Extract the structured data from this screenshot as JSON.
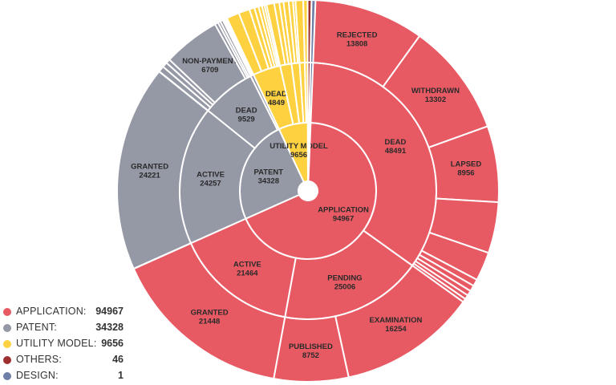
{
  "colors": {
    "application": "#e85a63",
    "patent": "#9598a5",
    "utility_model": "#fed141",
    "others": "#9e2f2f",
    "design": "#6f7fa8"
  },
  "legend": {
    "items": [
      {
        "label": "APPLICATION:",
        "value": "94967",
        "color_key": "application"
      },
      {
        "label": "PATENT:",
        "value": "34328",
        "color_key": "patent"
      },
      {
        "label": "UTILITY MODEL:",
        "value": "9656",
        "color_key": "utility_model"
      },
      {
        "label": "OTHERS:",
        "value": "46",
        "color_key": "others"
      },
      {
        "label": "DESIGN:",
        "value": "1",
        "color_key": "design"
      }
    ]
  },
  "chart_data": {
    "type": "sunburst",
    "title": "",
    "grid": false,
    "legend_position": "bottom-left",
    "children": [
      {
        "name": "APPLICATION",
        "value": 94967,
        "color_key": "application",
        "label": true,
        "children": [
          {
            "name": "DEAD",
            "value": 48491,
            "label": true,
            "children": [
              {
                "name": "REJECTED",
                "value": 13808,
                "label": true
              },
              {
                "name": "WITHDRAWN",
                "value": 13302,
                "label": true
              },
              {
                "name": "LAPSED",
                "value": 8956,
                "label": true
              },
              {
                "name": "",
                "value": 6000
              },
              {
                "name": "",
                "value": 3400
              },
              {
                "name": "",
                "value": 800
              },
              {
                "name": "",
                "value": 700
              },
              {
                "name": "",
                "value": 600
              },
              {
                "name": "",
                "value": 500
              },
              {
                "name": "",
                "value": 425
              }
            ]
          },
          {
            "name": "PENDING",
            "value": 25006,
            "label": true,
            "children": [
              {
                "name": "EXAMINATION",
                "value": 16254,
                "label": true
              },
              {
                "name": "PUBLISHED",
                "value": 8752,
                "label": true
              }
            ]
          },
          {
            "name": "ACTIVE",
            "value": 21464,
            "label": true,
            "children": [
              {
                "name": "GRANTED",
                "value": 21448,
                "label": true
              }
            ]
          }
        ]
      },
      {
        "name": "PATENT",
        "value": 34328,
        "color_key": "patent",
        "label": true,
        "children": [
          {
            "name": "ACTIVE",
            "value": 24257,
            "label": true,
            "children": [
              {
                "name": "GRANTED",
                "value": 24221,
                "label": true
              }
            ]
          },
          {
            "name": "DEAD",
            "value": 9529,
            "label": true,
            "children": [
              {
                "name": "",
                "value": 700
              },
              {
                "name": "",
                "value": 600
              },
              {
                "name": "",
                "value": 500
              },
              {
                "name": "NON-PAYMENT",
                "value": 6709,
                "label": true
              },
              {
                "name": "",
                "value": 400
              },
              {
                "name": "",
                "value": 300
              },
              {
                "name": "",
                "value": 320
              }
            ]
          },
          {
            "name": "",
            "value": 542
          }
        ]
      },
      {
        "name": "UTILITY MODEL",
        "value": 9656,
        "color_key": "utility_model",
        "label": true,
        "children": [
          {
            "name": "DEAD",
            "value": 4849,
            "label": true,
            "children": [
              {
                "name": "",
                "value": 1500
              },
              {
                "name": "",
                "value": 1300
              },
              {
                "name": "",
                "value": 600
              },
              {
                "name": "",
                "value": 500
              },
              {
                "name": "",
                "value": 400
              },
              {
                "name": "",
                "value": 300
              },
              {
                "name": "",
                "value": 249
              }
            ]
          },
          {
            "name": "",
            "value": 2000,
            "children": [
              {
                "name": "",
                "value": 900
              },
              {
                "name": "",
                "value": 600
              },
              {
                "name": "",
                "value": 500
              }
            ]
          },
          {
            "name": "",
            "value": 1400,
            "children": [
              {
                "name": "",
                "value": 600
              },
              {
                "name": "",
                "value": 500
              },
              {
                "name": "",
                "value": 300
              }
            ]
          },
          {
            "name": "",
            "value": 900,
            "children": [
              {
                "name": "",
                "value": 900
              }
            ]
          },
          {
            "name": "",
            "value": 507,
            "children": [
              {
                "name": "",
                "value": 507
              }
            ]
          }
        ]
      },
      {
        "name": "",
        "value": 46,
        "color_key": "others",
        "children": [
          {
            "name": "",
            "value": 46,
            "children": [
              {
                "name": "",
                "value": 46
              }
            ]
          }
        ]
      },
      {
        "name": "",
        "value": 1,
        "color_key": "design",
        "children": [
          {
            "name": "",
            "value": 1,
            "children": [
              {
                "name": "",
                "value": 1
              }
            ]
          }
        ]
      }
    ]
  }
}
